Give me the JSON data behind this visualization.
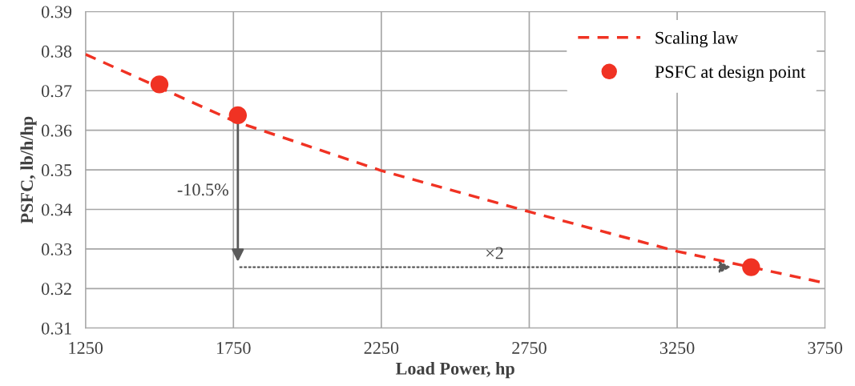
{
  "chart_data": {
    "type": "line",
    "xlabel": "Load Power, hp",
    "ylabel": "PSFC, lb/h/hp",
    "xlim": [
      1250,
      3750
    ],
    "xticks": [
      1250,
      1750,
      2250,
      2750,
      3250,
      3750
    ],
    "ylim": [
      0.31,
      0.39
    ],
    "yticks": [
      0.31,
      0.32,
      0.33,
      0.34,
      0.35,
      0.36,
      0.37,
      0.38,
      0.39
    ],
    "grid": true,
    "legend": "top right",
    "series": [
      {
        "name": "Scaling law",
        "color": "#f03223",
        "line_style": "dashed",
        "marker": "none",
        "x": [
          1250,
          1750,
          2250,
          2750,
          3250,
          3750
        ],
        "values": [
          0.3792,
          0.3624,
          0.3498,
          0.3394,
          0.3294,
          0.3214
        ]
      },
      {
        "name": "PSFC at design point",
        "type": "scatter",
        "color": "#f03223",
        "marker": "circle",
        "x": [
          1500,
          1765,
          3500
        ],
        "values": [
          0.3716,
          0.3638,
          0.3254
        ]
      }
    ],
    "annotations": [
      "-10.5%",
      "×2"
    ]
  }
}
